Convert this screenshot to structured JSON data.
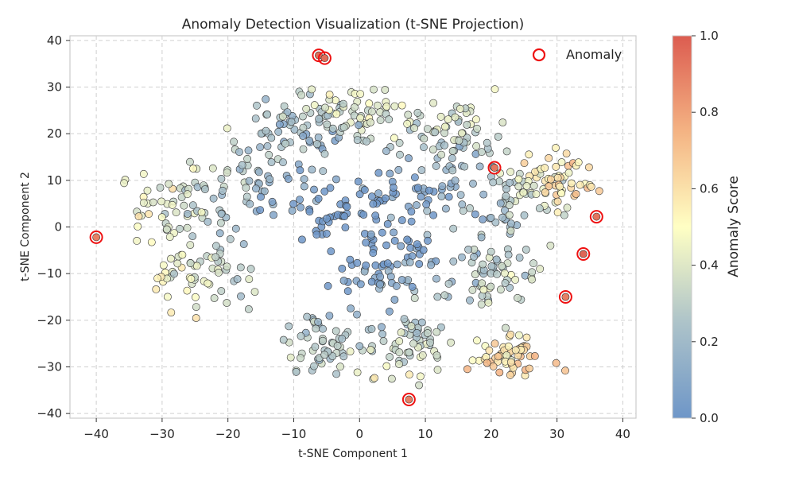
{
  "chart_data": {
    "type": "scatter",
    "title": "Anomaly Detection Visualization (t-SNE Projection)",
    "xlabel": "t-SNE Component 1",
    "ylabel": "t-SNE Component 2",
    "xlim": [
      -44,
      42
    ],
    "ylim": [
      -41,
      41
    ],
    "xticks": [
      -40,
      -30,
      -20,
      -10,
      0,
      10,
      20,
      30,
      40
    ],
    "yticks": [
      -40,
      -30,
      -20,
      -10,
      0,
      10,
      20,
      30,
      40
    ],
    "grid": true,
    "legend": {
      "placement": "top-right",
      "entries": [
        "Anomaly"
      ]
    },
    "colorbar": {
      "label": "Anomaly Score",
      "range": [
        0.0,
        1.0
      ],
      "ticks": [
        "0.0",
        "0.2",
        "0.4",
        "0.6",
        "0.8",
        "1.0"
      ],
      "colormap": [
        "#6e96c8",
        "#adc3c9",
        "#ffffc4",
        "#f4b383",
        "#dc5c50"
      ]
    },
    "colors": {
      "anomaly_marker": "#ee1111",
      "marker_edge": "#333333"
    },
    "cluster_centers": [
      {
        "x": -28,
        "y": 4,
        "spread": 6,
        "score": 0.25
      },
      {
        "x": -15,
        "y": 10,
        "spread": 6,
        "score": 0.2
      },
      {
        "x": -10,
        "y": 22,
        "spread": 5,
        "score": 0.12
      },
      {
        "x": -25,
        "y": -10,
        "spread": 5,
        "score": 0.3
      },
      {
        "x": -3,
        "y": 4,
        "spread": 7,
        "score": 0.08
      },
      {
        "x": 10,
        "y": 8,
        "spread": 7,
        "score": 0.1
      },
      {
        "x": 22,
        "y": 5,
        "spread": 6,
        "score": 0.15
      },
      {
        "x": 3,
        "y": -10,
        "spread": 6,
        "score": 0.1
      },
      {
        "x": 20,
        "y": -10,
        "spread": 5,
        "score": 0.2
      },
      {
        "x": 8,
        "y": -25,
        "spread": 5,
        "score": 0.18
      },
      {
        "x": -5,
        "y": -25,
        "spread": 5,
        "score": 0.15
      },
      {
        "x": 0,
        "y": 24,
        "spread": 5,
        "score": 0.25
      },
      {
        "x": 15,
        "y": 20,
        "spread": 5,
        "score": 0.2
      },
      {
        "x": 30,
        "y": 10,
        "spread": 4,
        "score": 0.35
      },
      {
        "x": 22,
        "y": -28,
        "spread": 4,
        "score": 0.35
      }
    ],
    "anomalies": [
      {
        "x": -6.2,
        "y": 36.8,
        "score": 0.95
      },
      {
        "x": -5.3,
        "y": 36.2,
        "score": 0.95
      },
      {
        "x": 20.5,
        "y": 12.7,
        "score": 0.92
      },
      {
        "x": -40.0,
        "y": -2.2,
        "score": 0.9
      },
      {
        "x": 36.0,
        "y": 2.2,
        "score": 0.93
      },
      {
        "x": 34.0,
        "y": -5.8,
        "score": 0.97
      },
      {
        "x": 31.3,
        "y": -15.0,
        "score": 0.9
      },
      {
        "x": 7.5,
        "y": -37.0,
        "score": 0.9
      }
    ]
  }
}
